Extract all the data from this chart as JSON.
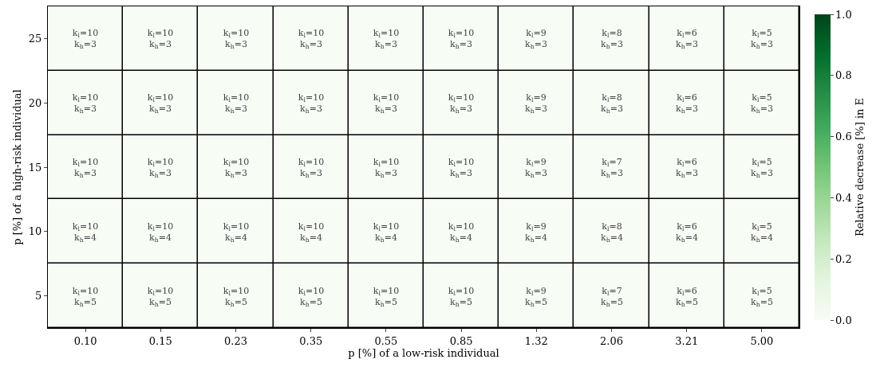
{
  "chart_data": {
    "type": "heatmap",
    "xlabel": "p [%] of a low-risk individual",
    "ylabel": "p [%] of a high-risk individual",
    "clabel": "Relative decrease [%] in E",
    "categories": [
      "0.10",
      "0.15",
      "0.23",
      "0.35",
      "0.55",
      "0.85",
      "1.32",
      "2.06",
      "3.21",
      "5.00"
    ],
    "y_categories": [
      "25",
      "20",
      "15",
      "10",
      "5"
    ],
    "cells": [
      [
        0,
        0,
        0,
        0,
        0,
        0,
        0,
        0,
        0,
        0
      ],
      [
        0,
        0,
        0,
        0,
        0,
        0,
        0,
        0,
        0,
        0
      ],
      [
        0,
        0,
        0,
        0,
        0,
        0,
        0,
        0,
        0,
        0
      ],
      [
        0,
        0,
        0,
        0,
        0,
        0,
        0,
        0,
        0,
        0
      ],
      [
        0,
        0,
        0,
        0,
        0,
        0,
        0,
        0,
        0,
        0
      ]
    ],
    "cell_labels": [
      [
        "k$_{l}$=10\nk$_{h}$=3",
        "k$_{l}$=10\nk$_{h}$=3",
        "k$_{l}$=10\nk$_{h}$=3",
        "k$_{l}$=10\nk$_{h}$=3",
        "k$_{l}$=10\nk$_{h}$=3",
        "k$_{l}$=10\nk$_{h}$=3",
        "k$_{l}$=9\nk$_{h}$=3",
        "k$_{l}$=8\nk$_{h}$=3",
        "k$_{l}$=6\nk$_{h}$=3",
        "k$_{l}$=5\nk$_{h}$=3"
      ],
      [
        "k$_{l}$=10\nk$_{h}$=3",
        "k$_{l}$=10\nk$_{h}$=3",
        "k$_{l}$=10\nk$_{h}$=3",
        "k$_{l}$=10\nk$_{h}$=3",
        "k$_{l}$=10\nk$_{h}$=3",
        "k$_{l}$=10\nk$_{h}$=3",
        "k$_{l}$=9\nk$_{h}$=3",
        "k$_{l}$=8\nk$_{h}$=3",
        "k$_{l}$=6\nk$_{h}$=3",
        "k$_{l}$=5\nk$_{h}$=3"
      ],
      [
        "k$_{l}$=10\nk$_{h}$=3",
        "k$_{l}$=10\nk$_{h}$=3",
        "k$_{l}$=10\nk$_{h}$=3",
        "k$_{l}$=10\nk$_{h}$=3",
        "k$_{l}$=10\nk$_{h}$=3",
        "k$_{l}$=10\nk$_{h}$=3",
        "k$_{l}$=9\nk$_{h}$=3",
        "k$_{l}$=7\nk$_{h}$=3",
        "k$_{l}$=6\nk$_{h}$=3",
        "k$_{l}$=5\nk$_{h}$=3"
      ],
      [
        "k$_{l}$=10\nk$_{h}$=4",
        "k$_{l}$=10\nk$_{h}$=4",
        "k$_{l}$=10\nk$_{h}$=4",
        "k$_{l}$=10\nk$_{h}$=4",
        "k$_{l}$=10\nk$_{h}$=4",
        "k$_{l}$=10\nk$_{h}$=4",
        "k$_{l}$=9\nk$_{h}$=4",
        "k$_{l}$=8\nk$_{h}$=4",
        "k$_{l}$=6\nk$_{h}$=4",
        "k$_{l}$=5\nk$_{h}$=4"
      ],
      [
        "k$_{l}$=10\nk$_{h}$=5",
        "k$_{l}$=10\nk$_{h}$=5",
        "k$_{l}$=10\nk$_{h}$=5",
        "k$_{l}$=10\nk$_{h}$=5",
        "k$_{l}$=10\nk$_{h}$=5",
        "k$_{l}$=10\nk$_{h}$=5",
        "k$_{l}$=9\nk$_{h}$=5",
        "k$_{l}$=7\nk$_{h}$=5",
        "k$_{l}$=6\nk$_{h}$=5",
        "k$_{l}$=5\nk$_{h}$=5"
      ]
    ],
    "clim": [
      0,
      1
    ],
    "cticks": [
      {
        "value": 0,
        "label": "0.0"
      },
      {
        "value": 0.2,
        "label": "0.2"
      },
      {
        "value": 0.4,
        "label": "0.4"
      },
      {
        "value": 0.6,
        "label": "0.6"
      },
      {
        "value": 0.8,
        "label": "0.8"
      },
      {
        "value": 1,
        "label": "1.0"
      }
    ]
  }
}
